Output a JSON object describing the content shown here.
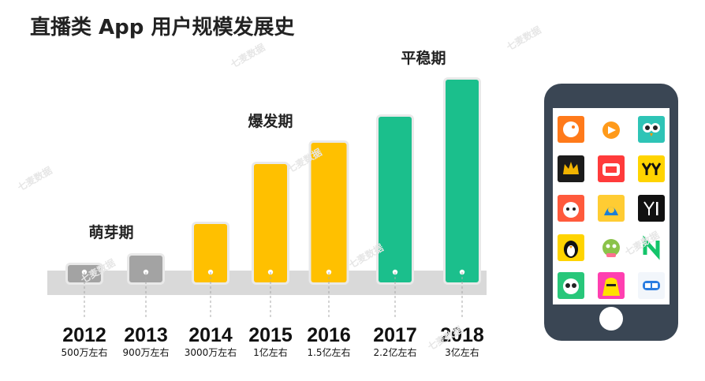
{
  "title": "直播类 App 用户规模发展史",
  "watermark": "七麦数据",
  "chart_data": {
    "type": "bar",
    "title": "直播类 App 用户规模发展史",
    "categories": [
      "2012",
      "2013",
      "2014",
      "2015",
      "2016",
      "2017",
      "2018"
    ],
    "value_labels": [
      "500万左右",
      "900万左右",
      "3000万左右",
      "1亿左右",
      "1.5亿左右",
      "2.2亿左右",
      "3亿左右"
    ],
    "values_wan": [
      500,
      900,
      3000,
      10000,
      15000,
      22000,
      30000
    ],
    "stages": [
      {
        "label": "萌芽期",
        "years": [
          "2012",
          "2013"
        ],
        "color": "#a3a3a3"
      },
      {
        "label": "爆发期",
        "years": [
          "2014",
          "2015",
          "2016"
        ],
        "color": "#ffc000"
      },
      {
        "label": "平稳期",
        "years": [
          "2017",
          "2018"
        ],
        "color": "#1bbf8c"
      }
    ],
    "band_color": "#d9d9d9"
  },
  "phone": {
    "body_color": "#3a4654",
    "apps": [
      {
        "name": "douyu-icon",
        "bg": "#ff7a1a",
        "fg": "#ffffff"
      },
      {
        "name": "huya-icon",
        "bg": "#ffffff",
        "fg": "#ff9a1a"
      },
      {
        "name": "owl-icon",
        "bg": "#2ec4b6",
        "fg": "#222222"
      },
      {
        "name": "crown-icon",
        "bg": "#1b1b1b",
        "fg": "#f2b400"
      },
      {
        "name": "quanmin-icon",
        "bg": "#ff3b3b",
        "fg": "#ffffff"
      },
      {
        "name": "yy-icon",
        "bg": "#ffd400",
        "fg": "#111111"
      },
      {
        "name": "fox-icon",
        "bg": "#ff5a3c",
        "fg": "#ffffff"
      },
      {
        "name": "panda-face-icon",
        "bg": "#ffcc33",
        "fg": "#1b7fd6"
      },
      {
        "name": "yi-icon",
        "bg": "#111111",
        "fg": "#ffffff"
      },
      {
        "name": "penguin-icon",
        "bg": "#ffd400",
        "fg": "#111111"
      },
      {
        "name": "dragon-icon",
        "bg": "#ffffff",
        "fg": "#8bc34a"
      },
      {
        "name": "n-logo-icon",
        "bg": "#ffffff",
        "fg": "#13c46a"
      },
      {
        "name": "panda-icon",
        "bg": "#28c77a",
        "fg": "#ffffff"
      },
      {
        "name": "yellow-monster-icon",
        "bg": "#ff3fb0",
        "fg": "#ffe100"
      },
      {
        "name": "haokan-icon",
        "bg": "#f2f6fb",
        "fg": "#2a7de1"
      }
    ]
  }
}
